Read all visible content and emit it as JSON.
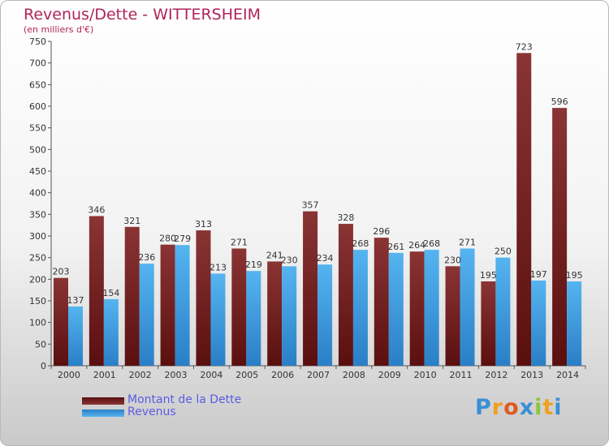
{
  "header": {
    "title": "Revenus/Dette - WITTERSHEIM",
    "subtitle": "(en milliers d'€)"
  },
  "legend": {
    "items": [
      {
        "label": "Montant de la Dette",
        "color": "#7a1d1d"
      },
      {
        "label": "Revenus",
        "color": "#3f9ee0"
      }
    ]
  },
  "brand": {
    "letters": [
      "P",
      "r",
      "o",
      "x",
      "i",
      "t",
      "i"
    ]
  },
  "chart_data": {
    "type": "bar",
    "categories": [
      "2000",
      "2001",
      "2002",
      "2003",
      "2004",
      "2005",
      "2006",
      "2007",
      "2008",
      "2009",
      "2010",
      "2011",
      "2012",
      "2013",
      "2014"
    ],
    "series": [
      {
        "name": "Montant de la Dette",
        "color": "#7a1d1d",
        "values": [
          203,
          346,
          321,
          280,
          313,
          271,
          241,
          357,
          328,
          296,
          264,
          230,
          195,
          723,
          596
        ]
      },
      {
        "name": "Revenus",
        "color": "#3f9ee0",
        "values": [
          137,
          154,
          236,
          279,
          213,
          219,
          230,
          234,
          268,
          261,
          268,
          271,
          250,
          197,
          195
        ]
      }
    ],
    "yticks": [
      0,
      50,
      100,
      150,
      200,
      250,
      300,
      350,
      400,
      450,
      500,
      550,
      600,
      650,
      700,
      750
    ],
    "ylim": [
      0,
      750
    ],
    "grid": false,
    "legend_position": "bottom-left"
  }
}
